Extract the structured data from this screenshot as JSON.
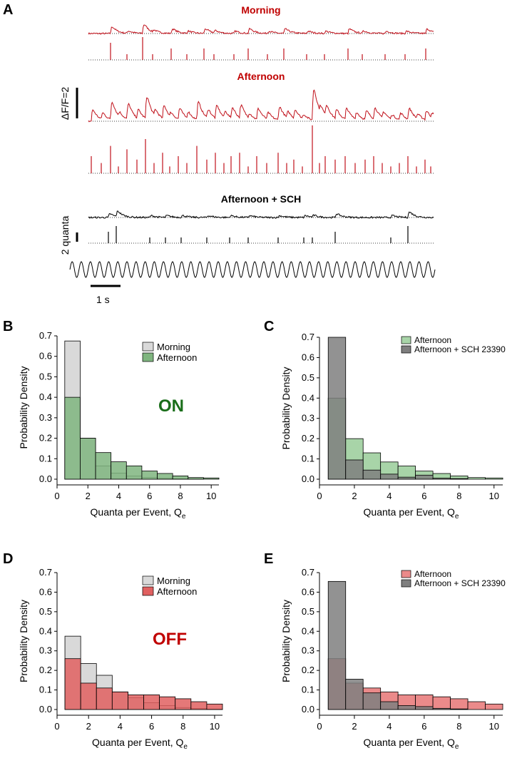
{
  "panel_a": {
    "letter": "A",
    "titles": {
      "morning": "Morning",
      "afternoon": "Afternoon",
      "sch": "Afternoon + SCH"
    },
    "title_colors": {
      "morning": "#c00000",
      "afternoon": "#c00000",
      "sch": "#000000"
    },
    "scalebar_dff_label": "ΔF/F=2",
    "scalebar_quanta_label": "2 quanta",
    "scalebar_time_label": "1 s",
    "trace_colors": {
      "morning": "#c0101a",
      "afternoon": "#c0101a",
      "sch": "#000000"
    },
    "stimulus_color": "#000000"
  },
  "chart_data": [
    {
      "id": "B",
      "type": "bar",
      "letter": "B",
      "xlabel": "Quanta per Event, Q",
      "xlabel_sub": "e",
      "ylabel": "Probability Density",
      "xlim": [
        0,
        10.5
      ],
      "ylim": [
        0,
        0.7
      ],
      "xticks": [
        0,
        2,
        4,
        6,
        8,
        10
      ],
      "yticks": [
        0.0,
        0.1,
        0.2,
        0.3,
        0.4,
        0.5,
        0.6,
        0.7
      ],
      "bin_edges": [
        0.5,
        1.5,
        2.5,
        3.5,
        4.5,
        5.5,
        6.5,
        7.5,
        8.5,
        9.5,
        10.5
      ],
      "series": [
        {
          "name": "Morning",
          "color": "#d9d9d9",
          "values": [
            0.675,
            0.2,
            0.065,
            0.03,
            0.015,
            0.008,
            0.004,
            0.002,
            0.001,
            0.0
          ]
        },
        {
          "name": "Afternoon",
          "color": "#7fb57f",
          "values": [
            0.4,
            0.2,
            0.13,
            0.085,
            0.065,
            0.04,
            0.028,
            0.016,
            0.008,
            0.006
          ]
        }
      ],
      "legend": "top-right",
      "annotation": "ON",
      "annotation_color": "#1a6e1a"
    },
    {
      "id": "C",
      "type": "bar",
      "letter": "C",
      "xlabel": "Quanta per Event, Q",
      "xlabel_sub": "e",
      "ylabel": "Probability Density",
      "xlim": [
        0,
        10.5
      ],
      "ylim": [
        0,
        0.7
      ],
      "xticks": [
        0,
        2,
        4,
        6,
        8,
        10
      ],
      "yticks": [
        0.0,
        0.1,
        0.2,
        0.3,
        0.4,
        0.5,
        0.6,
        0.7
      ],
      "bin_edges": [
        0.5,
        1.5,
        2.5,
        3.5,
        4.5,
        5.5,
        6.5,
        7.5,
        8.5,
        9.5,
        10.5
      ],
      "series": [
        {
          "name": "Afternoon",
          "color": "#a8d4a8",
          "values": [
            0.4,
            0.2,
            0.13,
            0.085,
            0.065,
            0.04,
            0.028,
            0.016,
            0.008,
            0.006
          ]
        },
        {
          "name": "Afternoon + SCH 23390",
          "color": "#7f7f7f",
          "values": [
            0.7,
            0.095,
            0.045,
            0.025,
            0.01,
            0.02,
            0.005,
            0.003,
            0.0,
            0.0
          ]
        }
      ],
      "legend": "top-right"
    },
    {
      "id": "D",
      "type": "bar",
      "letter": "D",
      "xlabel": "Quanta per Event, Q",
      "xlabel_sub": "e",
      "ylabel": "Probability Density",
      "xlim": [
        0,
        10.5
      ],
      "ylim": [
        0,
        0.7
      ],
      "xticks": [
        0,
        2,
        4,
        6,
        8,
        10
      ],
      "yticks": [
        0.0,
        0.1,
        0.2,
        0.3,
        0.4,
        0.5,
        0.6,
        0.7
      ],
      "bin_edges": [
        0.5,
        1.5,
        2.5,
        3.5,
        4.5,
        5.5,
        6.5,
        7.5,
        8.5,
        9.5,
        10.5
      ],
      "series": [
        {
          "name": "Morning",
          "color": "#d9d9d9",
          "values": [
            0.375,
            0.235,
            0.175,
            0.09,
            0.06,
            0.035,
            0.02,
            0.01,
            0.005,
            0.002
          ]
        },
        {
          "name": "Afternoon",
          "color": "#e06060",
          "values": [
            0.26,
            0.135,
            0.11,
            0.09,
            0.075,
            0.075,
            0.065,
            0.055,
            0.04,
            0.028
          ]
        }
      ],
      "legend": "top-right",
      "annotation": "OFF",
      "annotation_color": "#c00000"
    },
    {
      "id": "E",
      "type": "bar",
      "letter": "E",
      "xlabel": "Quanta per Event, Q",
      "xlabel_sub": "e",
      "ylabel": "Probability Density",
      "xlim": [
        0,
        10.5
      ],
      "ylim": [
        0,
        0.7
      ],
      "xticks": [
        0,
        2,
        4,
        6,
        8,
        10
      ],
      "yticks": [
        0.0,
        0.1,
        0.2,
        0.3,
        0.4,
        0.5,
        0.6,
        0.7
      ],
      "bin_edges": [
        0.5,
        1.5,
        2.5,
        3.5,
        4.5,
        5.5,
        6.5,
        7.5,
        8.5,
        9.5,
        10.5
      ],
      "series": [
        {
          "name": "Afternoon",
          "color": "#eb8a8a",
          "values": [
            0.26,
            0.135,
            0.11,
            0.09,
            0.075,
            0.075,
            0.065,
            0.055,
            0.04,
            0.028
          ]
        },
        {
          "name": "Afternoon + SCH 23390",
          "color": "#7f7f7f",
          "values": [
            0.655,
            0.155,
            0.085,
            0.04,
            0.02,
            0.015,
            0.006,
            0.003,
            0.0,
            0.0
          ]
        }
      ],
      "legend": "top-right"
    }
  ]
}
